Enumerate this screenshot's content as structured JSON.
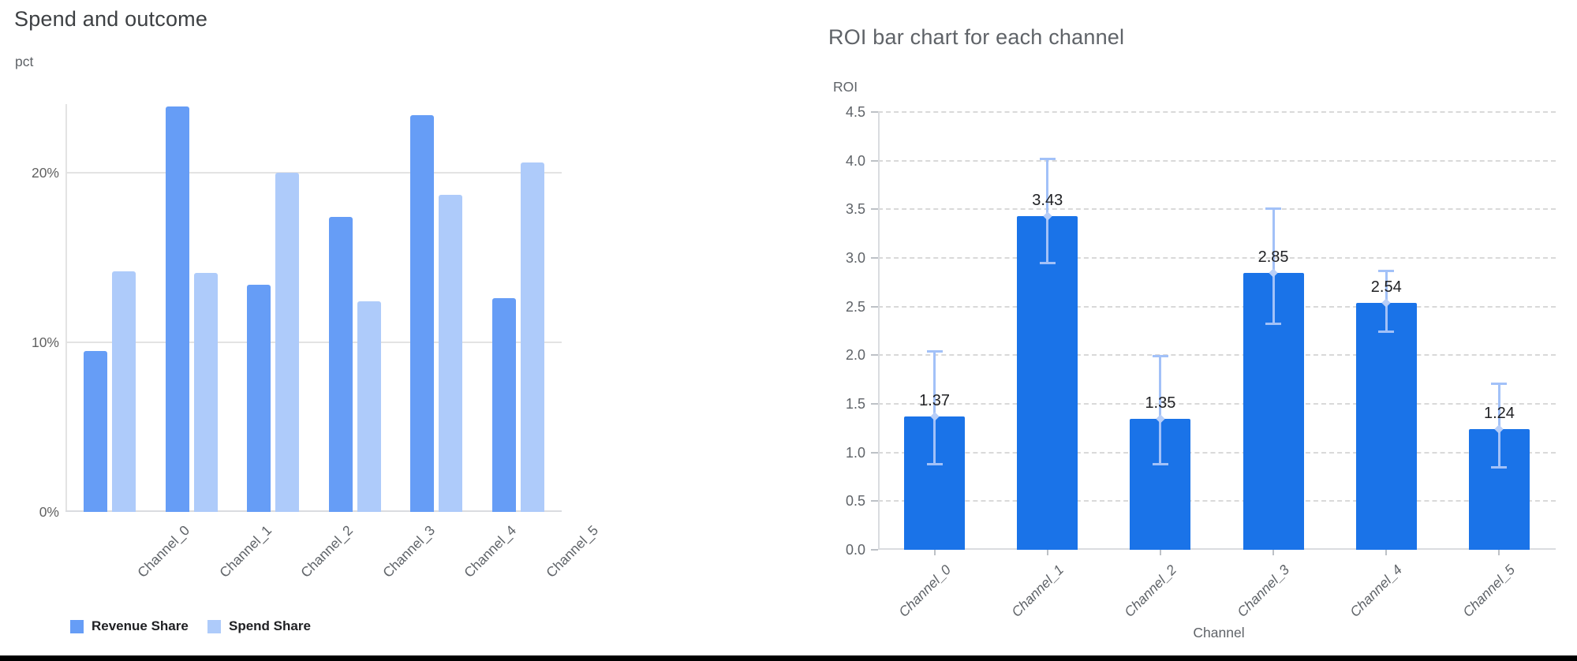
{
  "chart_data": [
    {
      "type": "bar",
      "title": "Spend and outcome",
      "ylabel": "pct",
      "xlabel": "",
      "categories": [
        "Channel_0",
        "Channel_1",
        "Channel_2",
        "Channel_3",
        "Channel_4",
        "Channel_5"
      ],
      "series": [
        {
          "name": "Revenue Share",
          "color": "#669df6",
          "values": [
            9.5,
            23.9,
            13.4,
            17.4,
            23.4,
            12.6
          ]
        },
        {
          "name": "Spend Share",
          "color": "#aecbfa",
          "values": [
            14.2,
            14.1,
            20.0,
            12.4,
            18.7,
            20.6
          ]
        }
      ],
      "y_ticks": [
        {
          "value": 0,
          "label": "0%"
        },
        {
          "value": 10,
          "label": "10%"
        },
        {
          "value": 20,
          "label": "20%"
        }
      ],
      "ylim": [
        0,
        24.05
      ],
      "grid": "solid",
      "legend_position": "bottom"
    },
    {
      "type": "bar",
      "title": "ROI bar chart for each channel",
      "ylabel": "ROI",
      "xlabel": "Channel",
      "categories": [
        "Channel_0",
        "Channel_1",
        "Channel_2",
        "Channel_3",
        "Channel_4",
        "Channel_5"
      ],
      "values": [
        1.37,
        3.43,
        1.35,
        2.85,
        2.54,
        1.24
      ],
      "data_labels": [
        "1.37",
        "3.43",
        "1.35",
        "2.85",
        "2.54",
        "1.24"
      ],
      "bar_color": "#1a73e8",
      "error_low": [
        0.88,
        2.95,
        0.88,
        2.32,
        2.24,
        0.85
      ],
      "error_high": [
        2.04,
        4.02,
        1.99,
        3.51,
        2.87,
        1.71
      ],
      "error_color": "#a2c1f8",
      "error_marker_color": "#b7cef8",
      "y_ticks": [
        {
          "value": 0.0,
          "label": "0.0"
        },
        {
          "value": 0.5,
          "label": "0.5"
        },
        {
          "value": 1.0,
          "label": "1.0"
        },
        {
          "value": 1.5,
          "label": "1.5"
        },
        {
          "value": 2.0,
          "label": "2.0"
        },
        {
          "value": 2.5,
          "label": "2.5"
        },
        {
          "value": 3.0,
          "label": "3.0"
        },
        {
          "value": 3.5,
          "label": "3.5"
        },
        {
          "value": 4.0,
          "label": "4.0"
        },
        {
          "value": 4.5,
          "label": "4.5"
        }
      ],
      "ylim": [
        0,
        4.5
      ],
      "grid": "dashed",
      "legend_position": "none"
    }
  ],
  "colors": {
    "left_title": "#3d4043",
    "right_title": "#5f6368",
    "grid_left": "#e3e3e3",
    "grid_right": "#d9d9d9",
    "axis_line": "#dadce0",
    "tick_mark": "#bdc1c6",
    "value_label": "#202124",
    "bottom_border": "#000000"
  }
}
